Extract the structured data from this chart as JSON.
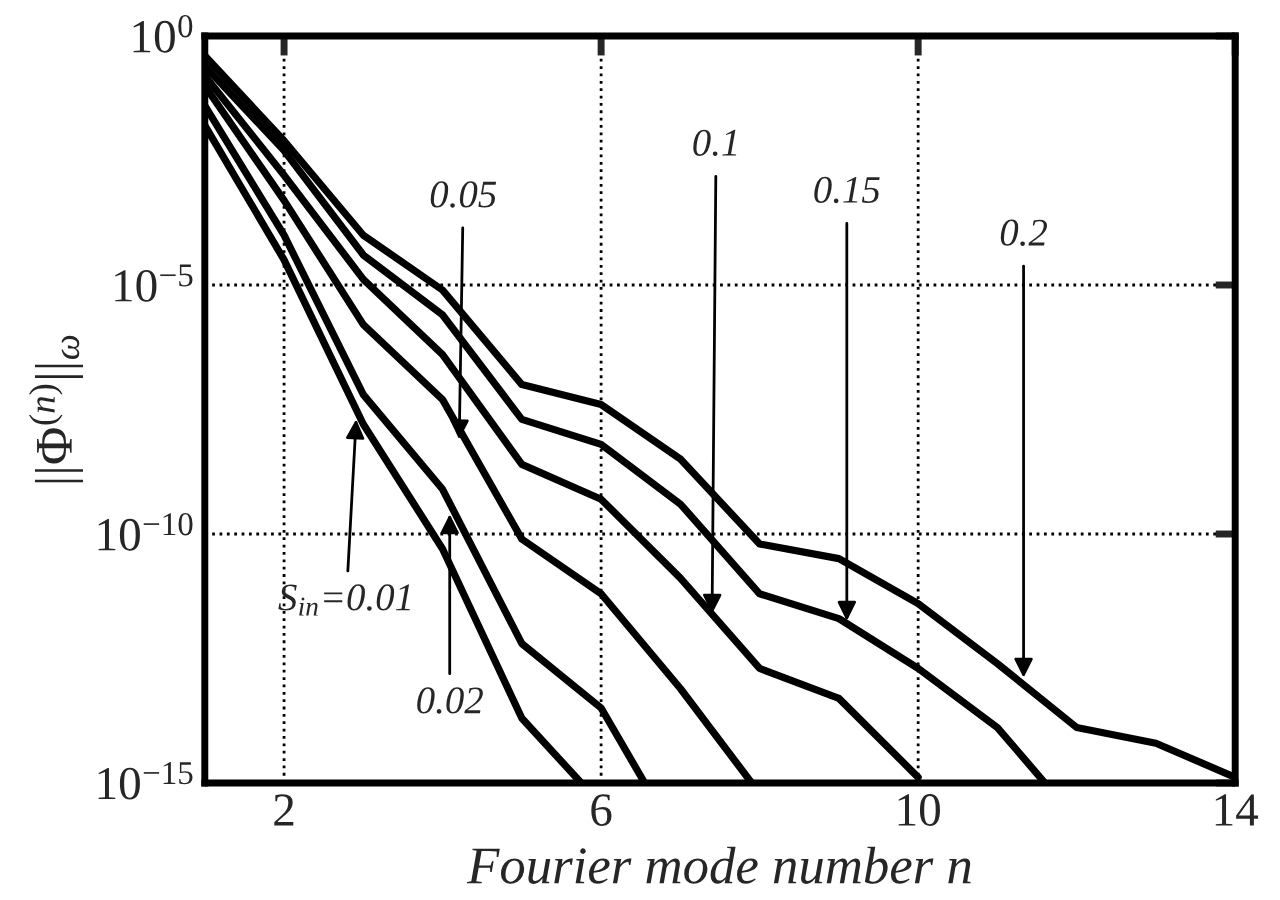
{
  "chart_data": {
    "type": "line",
    "xlabel": "Fourier mode number n",
    "ylabel": "||Φ$^{(n)}$||$_{ω}$",
    "log": "y",
    "xlim": [
      1,
      14
    ],
    "xticks": [
      2,
      6,
      10,
      14
    ],
    "ylim": [
      1e-15,
      1
    ],
    "yticks": [
      {
        "value": 1e-15,
        "label": "10$^{−15}$"
      },
      {
        "value": 1e-10,
        "label": "10$^{−10}$"
      },
      {
        "value": 1e-05,
        "label": "10$^{−5}$"
      },
      {
        "value": 1,
        "label": "10$^{0}$"
      }
    ],
    "grid": true,
    "legend": false,
    "marker": "none",
    "line_style": "solid",
    "series": [
      {
        "color": "#000000",
        "x": [
          1,
          2,
          3,
          4,
          5,
          6,
          7,
          8,
          9,
          10,
          11,
          12,
          13,
          14
        ],
        "values": [
          0.4,
          0.0079,
          0.0001,
          7.9e-06,
          1e-07,
          4e-08,
          3.2e-09,
          6.3e-11,
          3.2e-11,
          4e-12,
          2.5e-13,
          1.3e-14,
          6.3e-15,
          1.3e-15
        ]
      },
      {
        "color": "#000000",
        "x": [
          1,
          2,
          3,
          4,
          5,
          6,
          7,
          8,
          9,
          10,
          11,
          11.6
        ],
        "values": [
          0.25,
          0.005,
          4e-05,
          2.5e-06,
          2e-08,
          6.3e-09,
          4e-10,
          6.3e-12,
          2e-12,
          2e-13,
          1.3e-14,
          1e-15
        ]
      },
      {
        "color": "#000000",
        "x": [
          1,
          2,
          3,
          4,
          5,
          6,
          7,
          8,
          9,
          10
        ],
        "values": [
          0.16,
          0.0016,
          1.3e-05,
          4e-07,
          2.5e-09,
          5e-10,
          1.3e-11,
          2e-13,
          5e-14,
          1.3e-15
        ]
      },
      {
        "color": "#000000",
        "x": [
          1,
          2,
          3,
          4,
          5,
          6,
          7,
          7.9
        ],
        "values": [
          0.1,
          0.0005,
          1.6e-06,
          5e-08,
          7.9e-11,
          6.3e-12,
          7.9e-14,
          1e-15
        ]
      },
      {
        "color": "#000000",
        "x": [
          1,
          2,
          3,
          4,
          5,
          6,
          6.55
        ],
        "values": [
          0.04,
          0.0001,
          6.3e-08,
          7.9e-10,
          6.3e-13,
          3.2e-14,
          1e-15
        ]
      },
      {
        "color": "#000000",
        "x": [
          1,
          2,
          3,
          4,
          5,
          5.75
        ],
        "values": [
          0.016,
          3.2e-05,
          1.6e-08,
          5e-11,
          2e-14,
          1e-15
        ]
      }
    ],
    "annotations": [
      {
        "text": "S$_{in}$=0.01",
        "x": 2.91,
        "y": 2e-08
      },
      {
        "text": "0.02",
        "x": 4.09,
        "y": 2.5e-10
      },
      {
        "text": "0.05",
        "x": 4.21,
        "y": 7.9e-09
      },
      {
        "text": "0.1",
        "x": 7.4,
        "y": 2.5e-12
      },
      {
        "text": "0.15",
        "x": 9.1,
        "y": 1.8e-12
      },
      {
        "text": "0.2",
        "x": 11.33,
        "y": 1.3e-13
      }
    ]
  }
}
